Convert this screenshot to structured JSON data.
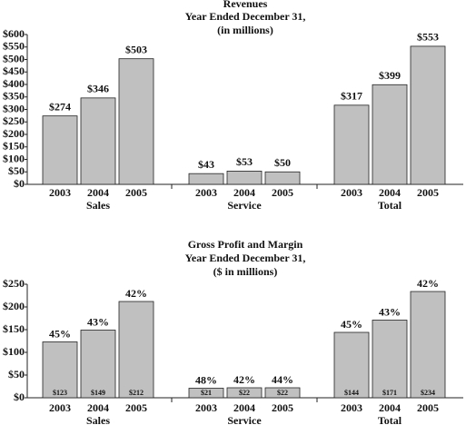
{
  "chart_data": [
    {
      "type": "bar",
      "title_lines": [
        "Revenues",
        "Year Ended December 31,",
        "(in millions)"
      ],
      "categories": [
        "2003",
        "2004",
        "2005"
      ],
      "color": "#c0c0c0",
      "value_label_position": "top",
      "ylim": [
        0,
        600
      ],
      "yticks": [
        {
          "value": 0,
          "label": "$0"
        },
        {
          "value": 50,
          "label": "$50"
        },
        {
          "value": 100,
          "label": "$100"
        },
        {
          "value": 150,
          "label": "$150"
        },
        {
          "value": 200,
          "label": "$200"
        },
        {
          "value": 250,
          "label": "$250"
        },
        {
          "value": 300,
          "label": "$300"
        },
        {
          "value": 350,
          "label": "$350"
        },
        {
          "value": 400,
          "label": "$400"
        },
        {
          "value": 450,
          "label": "$450"
        },
        {
          "value": 500,
          "label": "$500"
        },
        {
          "value": 550,
          "label": "$550"
        },
        {
          "value": 600,
          "label": "$600"
        }
      ],
      "series": [
        {
          "name": "Sales",
          "values": [
            274,
            346,
            503
          ],
          "value_labels": [
            "$274",
            "$346",
            "$503"
          ]
        },
        {
          "name": "Service",
          "values": [
            43,
            53,
            50
          ],
          "value_labels": [
            "$43",
            "$53",
            "$50"
          ]
        },
        {
          "name": "Total",
          "values": [
            317,
            399,
            553
          ],
          "value_labels": [
            "$317",
            "$399",
            "$553"
          ]
        }
      ]
    },
    {
      "type": "bar",
      "title_lines": [
        "Gross Profit and Margin",
        "Year Ended December 31,",
        "($ in millions)"
      ],
      "categories": [
        "2003",
        "2004",
        "2005"
      ],
      "color": "#c0c0c0",
      "value_label_position": "inside-bottom",
      "ylim": [
        0,
        250
      ],
      "yticks": [
        {
          "value": 0,
          "label": "$0"
        },
        {
          "value": 50,
          "label": "$50"
        },
        {
          "value": 100,
          "label": "$100"
        },
        {
          "value": 150,
          "label": "$150"
        },
        {
          "value": 200,
          "label": "$200"
        },
        {
          "value": 250,
          "label": "$250"
        }
      ],
      "series": [
        {
          "name": "Sales",
          "values": [
            123,
            149,
            212
          ],
          "value_labels": [
            "$123",
            "$149",
            "$212"
          ],
          "margins": [
            45,
            43,
            42
          ],
          "margin_labels": [
            "45%",
            "43%",
            "42%"
          ]
        },
        {
          "name": "Service",
          "values": [
            21,
            22,
            22
          ],
          "value_labels": [
            "$21",
            "$22",
            "$22"
          ],
          "margins": [
            48,
            42,
            44
          ],
          "margin_labels": [
            "48%",
            "42%",
            "44%"
          ]
        },
        {
          "name": "Total",
          "values": [
            144,
            171,
            234
          ],
          "value_labels": [
            "$144",
            "$171",
            "$234"
          ],
          "margins": [
            45,
            43,
            42
          ],
          "margin_labels": [
            "45%",
            "43%",
            "42%"
          ]
        }
      ]
    }
  ]
}
